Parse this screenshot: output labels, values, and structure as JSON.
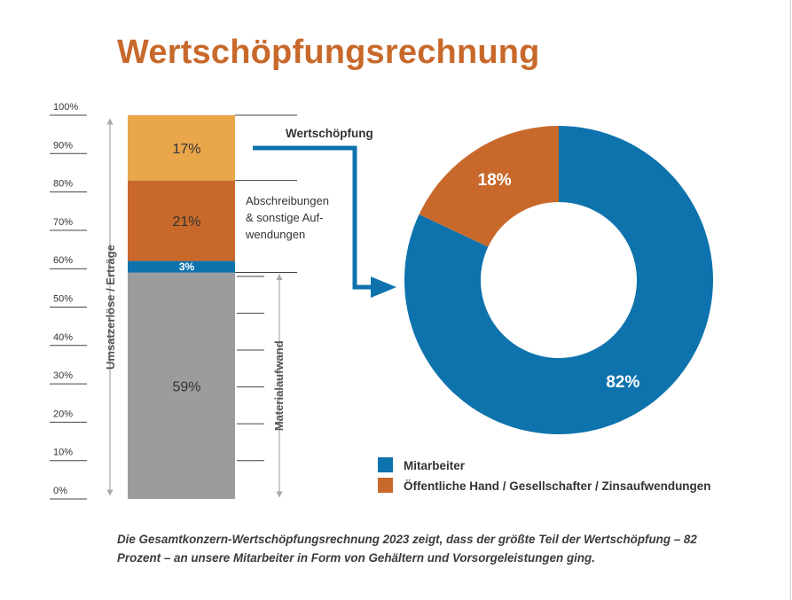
{
  "title": "Wertschöpfungsrechnung",
  "colors": {
    "orange_dark": "#c8692b",
    "orange_light": "#e9a64a",
    "blue": "#0e73ad",
    "gray": "#9c9c9f"
  },
  "chart_data": [
    {
      "type": "bar",
      "subtype": "stacked-100",
      "ylim": [
        0,
        100
      ],
      "yticks": [
        "0%",
        "10%",
        "20%",
        "30%",
        "40%",
        "50%",
        "60%",
        "70%",
        "80%",
        "90%",
        "100%"
      ],
      "segments": [
        {
          "key": "material",
          "value": 59,
          "label": "59%",
          "color": "#9c9c9f"
        },
        {
          "key": "ws_share",
          "value": 3,
          "label": "3%",
          "color": "#0e73ad"
        },
        {
          "key": "depr",
          "value": 21,
          "label": "21%",
          "color": "#c8692b"
        },
        {
          "key": "wertschoepfung",
          "value": 17,
          "label": "17%",
          "color": "#e9a64a"
        }
      ],
      "left_axis_title": "Umsatzerlöse / Erträge",
      "material_axis_title": "Materialaufwand",
      "depr_note": [
        "Abschreibungen",
        "& sonstige Auf-",
        "wendungen"
      ],
      "wertschoepfung_label": "Wertschöpfung"
    },
    {
      "type": "pie",
      "subtype": "donut",
      "slices": [
        {
          "name": "Mitarbeiter",
          "value": 82,
          "label": "82%",
          "color": "#0e73ad"
        },
        {
          "name": "Öffentliche Hand / Gesellschafter / Zinsaufwendungen",
          "value": 18,
          "label": "18%",
          "color": "#c8692b"
        }
      ],
      "legend_placement": "bottom"
    }
  ],
  "caption": "Die Gesamtkonzern-Wertschöpfungsrechnung 2023 zeigt, dass der größte Teil der Wertschöp­fung – 82 Prozent – an unsere Mitarbeiter in Form von Gehältern und Vorsorgeleistungen ging."
}
